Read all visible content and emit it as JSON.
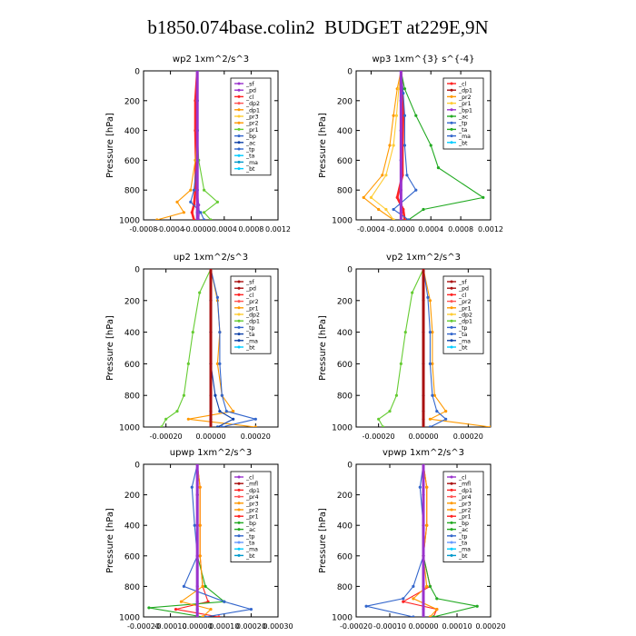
{
  "page": {
    "title": "b1850.074base.colin2  BUDGET at229E,9N"
  },
  "chart_data": [
    {
      "type": "line",
      "title": "wp2   1xm^2/s^3",
      "ylabel": "Pressure [hPa]",
      "xlim": [
        -0.0008,
        0.0012
      ],
      "ylim": [
        0,
        1000
      ],
      "x_ticks": [
        -0.0008,
        -0.0004,
        0.0,
        0.0004,
        0.0008,
        0.0012
      ],
      "x_tick_labels": [
        "-0.0008",
        "-0.0004",
        "-0.0000",
        "0.0004",
        "0.0008",
        "0.0012"
      ],
      "y_ticks": [
        0,
        200,
        400,
        600,
        800,
        1000
      ],
      "legend": [
        "_sf",
        "_pd",
        "_cl",
        "_dp2",
        "_dp1",
        "_pr3",
        "_pr2",
        "_pr1",
        "_bp",
        "_ac",
        "_tp",
        "_ta",
        "_ma",
        "_bt"
      ],
      "legend_position": "top-right",
      "series": [
        {
          "name": "_sf",
          "color": "#9a33cc",
          "x": [
            0,
            0,
            0,
            0,
            0,
            0,
            0,
            0
          ],
          "y": [
            0,
            200,
            400,
            600,
            800,
            900,
            950,
            1000
          ]
        },
        {
          "name": "_pd",
          "color": "#9a33cc",
          "x": [
            0,
            0,
            0,
            0,
            0,
            2e-05,
            3e-05,
            2e-05
          ],
          "y": [
            0,
            200,
            400,
            600,
            800,
            900,
            950,
            1000
          ]
        },
        {
          "name": "_cl",
          "color": "#ff2222",
          "x": [
            0,
            -3e-05,
            -3e-05,
            -2e-05,
            -3e-05,
            -5e-05,
            -8e-05,
            -5e-05
          ],
          "y": [
            0,
            200,
            400,
            600,
            800,
            900,
            950,
            1000
          ]
        },
        {
          "name": "_pr2",
          "color": "#ff9900",
          "x": [
            0,
            0,
            0,
            -3e-05,
            -0.0001,
            -0.0003,
            -0.0002,
            -0.0006
          ],
          "y": [
            0,
            200,
            400,
            600,
            800,
            880,
            950,
            1000
          ]
        },
        {
          "name": "_pr1",
          "color": "#66cc33",
          "x": [
            0,
            0,
            0,
            2e-05,
            0.0001,
            0.0003,
            0.0001,
            0.0002
          ],
          "y": [
            0,
            200,
            400,
            600,
            800,
            880,
            950,
            1000
          ]
        },
        {
          "name": "_tp",
          "color": "#3366cc",
          "x": [
            0,
            0,
            0,
            0,
            -5e-05,
            -0.0001,
            5e-05,
            0.0001
          ],
          "y": [
            0,
            200,
            400,
            600,
            800,
            880,
            950,
            1000
          ]
        },
        {
          "name": "_bt",
          "color": "#00ccff",
          "x": [
            0,
            0,
            0,
            0,
            0,
            0,
            0,
            0
          ],
          "y": [
            0,
            200,
            400,
            600,
            800,
            900,
            950,
            1000
          ]
        }
      ]
    },
    {
      "type": "line",
      "title": "wp3   1xm^{3} s^{-4}",
      "ylabel": "Pressure [hPa]",
      "xlim": [
        -0.0006,
        0.0012
      ],
      "ylim": [
        0,
        1000
      ],
      "x_ticks": [
        -0.0004,
        0.0,
        0.0004,
        0.0008,
        0.0012
      ],
      "x_tick_labels": [
        "-0.0004",
        "-0.0000",
        "0.0004",
        "0.0008",
        "0.0012"
      ],
      "y_ticks": [
        0,
        200,
        400,
        600,
        800,
        1000
      ],
      "legend": [
        "_cl",
        "_dp1",
        "_pr2",
        "_pr1",
        "_bp1",
        "_ac",
        "_tp",
        "_ta",
        "_ma",
        "_bt"
      ],
      "legend_position": "top-right",
      "series": [
        {
          "name": "_cl",
          "color": "#ff2222",
          "x": [
            0,
            2e-05,
            3e-05,
            2e-05,
            2e-05,
            -5e-05,
            3e-05,
            5e-05
          ],
          "y": [
            0,
            150,
            300,
            500,
            700,
            850,
            930,
            1000
          ]
        },
        {
          "name": "_pr2",
          "color": "#ff9900",
          "x": [
            0,
            -5e-05,
            -0.0001,
            -0.00015,
            -0.00025,
            -0.0005,
            -0.0003,
            -0.0001
          ],
          "y": [
            0,
            120,
            300,
            500,
            700,
            850,
            930,
            1000
          ]
        },
        {
          "name": "_pr1",
          "color": "#ffcc33",
          "x": [
            0,
            -3e-05,
            -6e-05,
            -0.0001,
            -0.0002,
            -0.0004,
            -0.0002,
            -0.0001
          ],
          "y": [
            0,
            120,
            300,
            500,
            700,
            850,
            930,
            1000
          ]
        },
        {
          "name": "_ac",
          "color": "#22aa22",
          "x": [
            0,
            5e-05,
            0.0002,
            0.0004,
            0.0005,
            0.0011,
            0.0003,
            0.0001
          ],
          "y": [
            0,
            120,
            300,
            500,
            650,
            850,
            930,
            1000
          ]
        },
        {
          "name": "_tp",
          "color": "#3366cc",
          "x": [
            0,
            3e-05,
            5e-05,
            5e-05,
            8e-05,
            0.0002,
            -0.0001,
            0.0001
          ],
          "y": [
            0,
            150,
            300,
            500,
            700,
            800,
            930,
            1000
          ]
        },
        {
          "name": "_bt",
          "color": "#00ccff",
          "x": [
            0,
            0,
            0,
            0,
            0,
            0,
            0,
            0
          ],
          "y": [
            0,
            200,
            400,
            600,
            800,
            900,
            950,
            1000
          ]
        },
        {
          "name": "_bp1",
          "color": "#9a33cc",
          "x": [
            0,
            0,
            0,
            0,
            0,
            0,
            0,
            0
          ],
          "y": [
            0,
            200,
            400,
            600,
            800,
            900,
            950,
            1000
          ]
        }
      ]
    },
    {
      "type": "line",
      "title": "up2   1xm^2/s^3",
      "ylabel": "Pressure [hPa]",
      "xlim": [
        -0.0003,
        0.0003
      ],
      "ylim": [
        0,
        1000
      ],
      "x_ticks": [
        -0.0002,
        0.0,
        0.0002
      ],
      "x_tick_labels": [
        "-0.00020",
        "0.00000",
        "0.00020"
      ],
      "y_ticks": [
        0,
        200,
        400,
        600,
        800,
        1000
      ],
      "legend": [
        "_sf",
        "_pd",
        "_cl",
        "_pr2",
        "_pr1",
        "_dp2",
        "_dp1",
        "_tp",
        "_ta",
        "_ma",
        "_bt"
      ],
      "legend_position": "top-right",
      "series": [
        {
          "name": "_sf",
          "color": "#aa1111",
          "x": [
            0,
            0,
            0,
            0,
            0,
            0,
            0,
            0
          ],
          "y": [
            0,
            200,
            400,
            600,
            800,
            900,
            950,
            1000
          ]
        },
        {
          "name": "_pr1",
          "color": "#ff9900",
          "x": [
            0,
            3e-05,
            4e-05,
            3e-05,
            5e-05,
            0.0001,
            -0.0001,
            0.0002
          ],
          "y": [
            0,
            200,
            400,
            600,
            800,
            900,
            950,
            1000
          ]
        },
        {
          "name": "_dp1",
          "color": "#66cc33",
          "x": [
            0,
            -5e-05,
            -8e-05,
            -0.0001,
            -0.00012,
            -0.00015,
            -0.0002,
            -0.00022
          ],
          "y": [
            0,
            150,
            400,
            600,
            800,
            900,
            950,
            1000
          ]
        },
        {
          "name": "_tp",
          "color": "#3366cc",
          "x": [
            0,
            3e-05,
            4e-05,
            4e-05,
            5e-05,
            7e-05,
            0.0002,
            5e-05
          ],
          "y": [
            0,
            180,
            400,
            600,
            800,
            900,
            950,
            1000
          ]
        },
        {
          "name": "_ta",
          "color": "#1144aa",
          "x": [
            0,
            0,
            0,
            0,
            2e-05,
            4e-05,
            0.0001,
            3e-05
          ],
          "y": [
            0,
            200,
            400,
            600,
            800,
            900,
            950,
            1000
          ]
        },
        {
          "name": "_bt",
          "color": "#00ccff",
          "x": [
            0,
            0,
            0,
            0,
            0,
            0,
            0,
            0
          ],
          "y": [
            0,
            200,
            400,
            600,
            800,
            900,
            950,
            1000
          ]
        }
      ]
    },
    {
      "type": "line",
      "title": "vp2   1xm^2/s^3",
      "ylabel": "Pressure [hPa]",
      "xlim": [
        -0.0003,
        0.0003
      ],
      "ylim": [
        0,
        1000
      ],
      "x_ticks": [
        -0.0002,
        0.0,
        0.0002
      ],
      "x_tick_labels": [
        "-0.00020",
        "0.00000",
        "0.00020"
      ],
      "y_ticks": [
        0,
        200,
        400,
        600,
        800,
        1000
      ],
      "legend": [
        "_sf",
        "_pd",
        "_cl",
        "_pr2",
        "_pr1",
        "_dp2",
        "_dp1",
        "_tp",
        "_ta",
        "_ma",
        "_bt"
      ],
      "legend_position": "top-right",
      "series": [
        {
          "name": "_sf",
          "color": "#aa1111",
          "x": [
            0,
            0,
            0,
            0,
            0,
            0,
            0,
            0
          ],
          "y": [
            0,
            200,
            400,
            600,
            800,
            900,
            950,
            1000
          ]
        },
        {
          "name": "_pr1",
          "color": "#ff9900",
          "x": [
            0,
            3e-05,
            4e-05,
            4e-05,
            5e-05,
            0.0001,
            3e-05,
            0.0003
          ],
          "y": [
            0,
            200,
            400,
            600,
            800,
            900,
            950,
            1000
          ]
        },
        {
          "name": "_dp1",
          "color": "#66cc33",
          "x": [
            0,
            -5e-05,
            -8e-05,
            -0.0001,
            -0.00012,
            -0.00015,
            -0.0002,
            -0.00018
          ],
          "y": [
            0,
            150,
            400,
            600,
            800,
            900,
            950,
            1000
          ]
        },
        {
          "name": "_tp",
          "color": "#3366cc",
          "x": [
            0,
            2e-05,
            3e-05,
            3e-05,
            4e-05,
            6e-05,
            0.0001,
            3e-05
          ],
          "y": [
            0,
            180,
            400,
            600,
            800,
            900,
            950,
            1000
          ]
        },
        {
          "name": "_bt",
          "color": "#00ccff",
          "x": [
            0,
            0,
            0,
            0,
            0,
            0,
            0,
            0
          ],
          "y": [
            0,
            200,
            400,
            600,
            800,
            900,
            950,
            1000
          ]
        }
      ]
    },
    {
      "type": "line",
      "title": "upwp   1xm^2/s^3",
      "ylabel": "Pressure [hPa]",
      "xlim": [
        -0.0002,
        0.0003
      ],
      "ylim": [
        0,
        1000
      ],
      "x_ticks": [
        -0.0002,
        -0.0001,
        0.0,
        0.0001,
        0.0002,
        0.0003
      ],
      "x_tick_labels": [
        "-0.00020",
        "-0.00010",
        "0.00000",
        "0.00010",
        "0.00020",
        "0.00030"
      ],
      "y_ticks": [
        0,
        200,
        400,
        600,
        800,
        1000
      ],
      "legend": [
        "_cl",
        "_mfl",
        "_dp1",
        "_pr4",
        "_pr3",
        "_pr2",
        "_pr1",
        "_bp",
        "_ac",
        "_tp",
        "_ta",
        "_ma",
        "_bt"
      ],
      "legend_position": "top-right",
      "series": [
        {
          "name": "_pr1",
          "color": "#ff2222",
          "x": [
            0,
            1e-05,
            1e-05,
            1e-05,
            2e-05,
            4e-05,
            -8e-05,
            8e-05
          ],
          "y": [
            0,
            150,
            400,
            600,
            800,
            900,
            950,
            1000
          ]
        },
        {
          "name": "_ac",
          "color": "#22aa22",
          "x": [
            0,
            0,
            0,
            0,
            3e-05,
            0.0001,
            -0.00018,
            2e-05
          ],
          "y": [
            0,
            200,
            400,
            600,
            800,
            900,
            940,
            1000
          ]
        },
        {
          "name": "_tp",
          "color": "#3366cc",
          "x": [
            0,
            -2e-05,
            -1e-05,
            0,
            -5e-05,
            0.0001,
            0.0002,
            3e-05
          ],
          "y": [
            0,
            150,
            400,
            600,
            800,
            900,
            950,
            1000
          ]
        },
        {
          "name": "_pr2",
          "color": "#ff9900",
          "x": [
            0,
            1e-05,
            1e-05,
            1e-05,
            2e-05,
            -6e-05,
            5e-05,
            2e-05
          ],
          "y": [
            0,
            150,
            400,
            600,
            800,
            900,
            950,
            1000
          ]
        },
        {
          "name": "_cl",
          "color": "#9a33cc",
          "x": [
            0,
            0,
            0,
            0,
            0,
            0,
            0,
            0
          ],
          "y": [
            0,
            200,
            400,
            600,
            800,
            900,
            950,
            1000
          ]
        }
      ]
    },
    {
      "type": "line",
      "title": "vpwp   1xm^2/s^3",
      "ylabel": "Pressure [hPa]",
      "xlim": [
        -0.0002,
        0.0002
      ],
      "ylim": [
        0,
        1000
      ],
      "x_ticks": [
        -0.0002,
        -0.0001,
        0.0,
        0.0001,
        0.0002
      ],
      "x_tick_labels": [
        "-0.00020",
        "-0.00010",
        "0.00000",
        "0.00010",
        "0.00020"
      ],
      "y_ticks": [
        0,
        200,
        400,
        600,
        800,
        1000
      ],
      "legend": [
        "_cl",
        "_mfl",
        "_dp1",
        "_pr4",
        "_pr3",
        "_pr2",
        "_pr1",
        "_bp",
        "_ac",
        "_tp",
        "_ta",
        "_ma",
        "_bt"
      ],
      "legend_position": "top-right",
      "series": [
        {
          "name": "_pr1",
          "color": "#ff2222",
          "x": [
            0,
            1e-05,
            1e-05,
            0,
            2e-05,
            -6e-05,
            4e-05,
            3e-05
          ],
          "y": [
            0,
            150,
            400,
            600,
            800,
            900,
            950,
            1000
          ]
        },
        {
          "name": "_ac",
          "color": "#22aa22",
          "x": [
            0,
            0,
            0,
            0,
            2e-05,
            4e-05,
            0.00016,
            3e-05
          ],
          "y": [
            0,
            200,
            400,
            600,
            800,
            880,
            930,
            1000
          ]
        },
        {
          "name": "_tp",
          "color": "#3366cc",
          "x": [
            0,
            -1e-05,
            0,
            0,
            -3e-05,
            -6e-05,
            -0.00017,
            -3e-05
          ],
          "y": [
            0,
            150,
            400,
            600,
            800,
            880,
            930,
            1000
          ]
        },
        {
          "name": "_pr2",
          "color": "#ff9900",
          "x": [
            0,
            1e-05,
            1e-05,
            0,
            1e-05,
            -3e-05,
            4e-05,
            2e-05
          ],
          "y": [
            0,
            150,
            400,
            600,
            800,
            880,
            950,
            1000
          ]
        },
        {
          "name": "_cl",
          "color": "#9a33cc",
          "x": [
            0,
            0,
            0,
            0,
            0,
            0,
            0,
            0
          ],
          "y": [
            0,
            200,
            400,
            600,
            800,
            900,
            950,
            1000
          ]
        }
      ]
    }
  ]
}
